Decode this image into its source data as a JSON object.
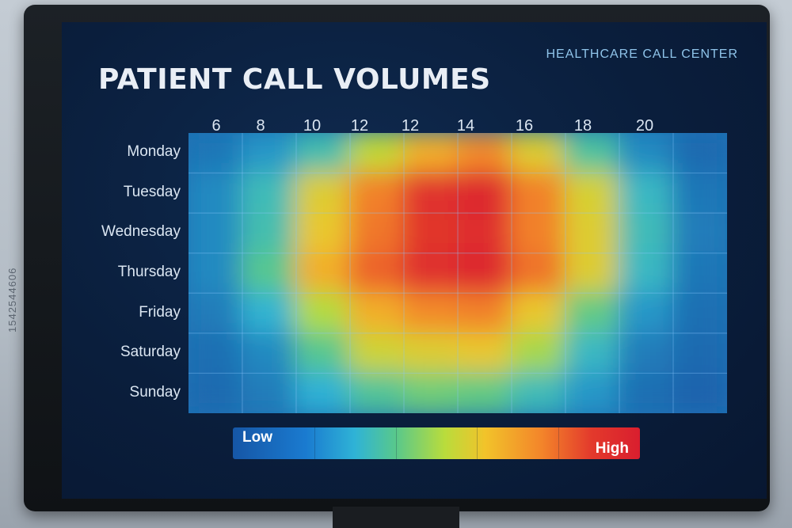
{
  "header": {
    "title": "PATIENT CALL VOLUMES",
    "brand": "HEALTHCARE CALL CENTER"
  },
  "legend": {
    "low": "Low",
    "high": "High",
    "colors": [
      "#1656a6",
      "#2fb3d6",
      "#58c88c",
      "#b9dc3c",
      "#f2c32a",
      "#f3842a",
      "#e33a2c",
      "#d91e2e"
    ]
  },
  "side_text": "1542544606",
  "chart_data": {
    "type": "heatmap",
    "title": "PATIENT CALL VOLUMES",
    "x_tick_labels": [
      "6",
      "8",
      "10",
      "12",
      "12",
      "14",
      "16",
      "18",
      "20"
    ],
    "y_categories": [
      "Monday",
      "Tuesday",
      "Wednesday",
      "Thursday",
      "Friday",
      "Saturday",
      "Sunday"
    ],
    "columns": 10,
    "value_scale": "relative 0 (Low) to 1 (High)",
    "values": [
      [
        0.05,
        0.1,
        0.22,
        0.45,
        0.62,
        0.7,
        0.52,
        0.25,
        0.08,
        0.03
      ],
      [
        0.08,
        0.2,
        0.52,
        0.72,
        0.9,
        0.95,
        0.72,
        0.5,
        0.18,
        0.05
      ],
      [
        0.08,
        0.22,
        0.55,
        0.74,
        0.88,
        0.92,
        0.72,
        0.52,
        0.2,
        0.06
      ],
      [
        0.08,
        0.28,
        0.62,
        0.78,
        0.92,
        0.95,
        0.75,
        0.52,
        0.18,
        0.05
      ],
      [
        0.06,
        0.15,
        0.42,
        0.62,
        0.7,
        0.72,
        0.55,
        0.3,
        0.1,
        0.04
      ],
      [
        0.04,
        0.08,
        0.28,
        0.48,
        0.52,
        0.55,
        0.4,
        0.18,
        0.06,
        0.03
      ],
      [
        0.03,
        0.06,
        0.14,
        0.26,
        0.32,
        0.3,
        0.2,
        0.1,
        0.04,
        0.02
      ]
    ]
  }
}
